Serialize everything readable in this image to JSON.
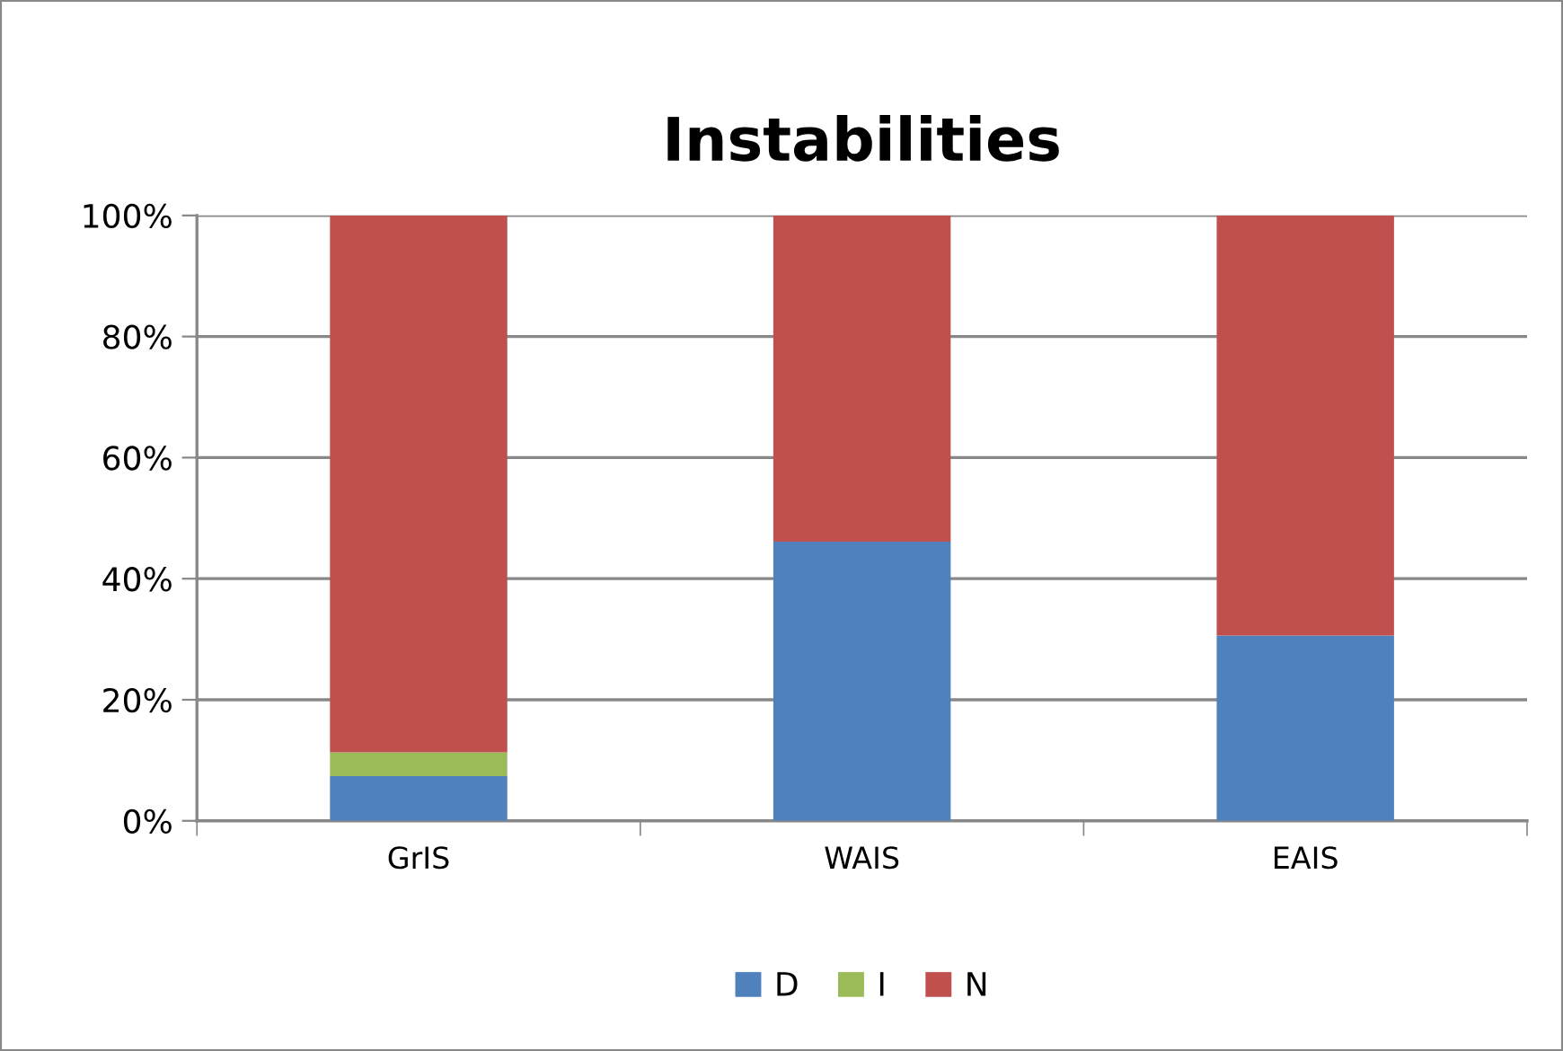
{
  "chart_data": {
    "type": "bar",
    "title": "Instabilities",
    "stacked": true,
    "categories": [
      "GrIS",
      "WAIS",
      "EAIS"
    ],
    "series": [
      {
        "name": "D",
        "color": "#4f81bd",
        "values": [
          7.4,
          46.1,
          30.6
        ]
      },
      {
        "name": "I",
        "color": "#9bbb59",
        "values": [
          3.9,
          0,
          0
        ]
      },
      {
        "name": "N",
        "color": "#c0504d",
        "values": [
          88.7,
          53.9,
          69.4
        ]
      }
    ],
    "ylim": [
      0,
      100
    ],
    "yticks": [
      {
        "value": 0,
        "label": "0%"
      },
      {
        "value": 20,
        "label": "20%"
      },
      {
        "value": 40,
        "label": "40%"
      },
      {
        "value": 60,
        "label": "60%"
      },
      {
        "value": 80,
        "label": "80%"
      },
      {
        "value": 100,
        "label": "100%"
      }
    ],
    "grid": "y",
    "legend": "bottom"
  }
}
